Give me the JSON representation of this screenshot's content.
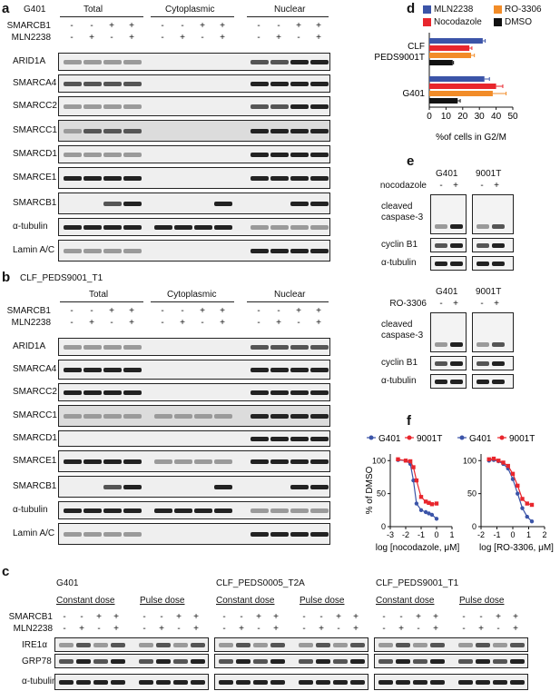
{
  "colors": {
    "mln2238": "#3b54a8",
    "nocodazole": "#e8262d",
    "ro3306": "#f28c28",
    "dmso": "#111111",
    "g401": "#3b54a8",
    "pt9001": "#e8262d"
  },
  "panel_a": {
    "letter": "a",
    "cell_line": "G401",
    "groups": [
      "Total",
      "Cytoplasmic",
      "Nuclear"
    ],
    "row_labels": [
      "SMARCB1",
      "MLN2238"
    ],
    "smarcb1_signs": [
      "-",
      "-",
      "+",
      "+"
    ],
    "mln_signs": [
      "-",
      "+",
      "-",
      "+"
    ],
    "proteins": [
      "ARID1A",
      "SMARCA4",
      "SMARCC2",
      "SMARCC1",
      "SMARCD1",
      "SMARCE1",
      "SMARCB1",
      "α-tubulin",
      "Lamin A/C"
    ]
  },
  "panel_b": {
    "letter": "b",
    "cell_line": "CLF_PEDS9001_T1",
    "groups": [
      "Total",
      "Cytoplasmic",
      "Nuclear"
    ],
    "row_labels": [
      "SMARCB1",
      "MLN2238"
    ],
    "smarcb1_signs": [
      "-",
      "-",
      "+",
      "+"
    ],
    "mln_signs": [
      "-",
      "+",
      "-",
      "+"
    ],
    "proteins": [
      "ARID1A",
      "SMARCA4",
      "SMARCC2",
      "SMARCC1",
      "SMARCD1",
      "SMARCE1",
      "SMARCB1",
      "α-tubulin",
      "Lamin A/C"
    ]
  },
  "panel_c": {
    "letter": "c",
    "cell_lines": [
      "G401",
      "CLF_PEDS0005_T2A",
      "CLF_PEDS9001_T1"
    ],
    "doses": [
      "Constant dose",
      "Pulse dose"
    ],
    "row_labels": [
      "SMARCB1",
      "MLN2238"
    ],
    "proteins": [
      "IRE1α",
      "GRP78",
      "α-tubulin"
    ]
  },
  "panel_d": {
    "letter": "d",
    "legend": [
      "MLN2238",
      "RO-3306",
      "Nocodazole",
      "DMSO"
    ],
    "xlabel": "%of cells in G2/M",
    "xticks": [
      "0",
      "10",
      "20",
      "30",
      "40",
      "50"
    ],
    "chart_data": {
      "type": "bar",
      "orientation": "horizontal",
      "categories": [
        "CLF PEDS9001T",
        "G401"
      ],
      "series": [
        {
          "name": "MLN2238",
          "values": [
            32,
            33
          ]
        },
        {
          "name": "Nocodazole",
          "values": [
            24,
            40
          ]
        },
        {
          "name": "RO-3306",
          "values": [
            25,
            38
          ]
        },
        {
          "name": "DMSO",
          "values": [
            14,
            17
          ]
        }
      ],
      "errors": [
        [
          1.5,
          3
        ],
        [
          1.5,
          4
        ],
        [
          2,
          8
        ],
        [
          0.5,
          1.5
        ]
      ],
      "xlabel": "%of cells in G2/M",
      "xlim": [
        0,
        50
      ]
    }
  },
  "panel_e": {
    "letter": "e",
    "cell_lines": [
      "G401",
      "9001T"
    ],
    "top": {
      "treatment": "nocodazole",
      "signs": [
        "-",
        "+",
        "-",
        "+"
      ],
      "proteins": [
        "cleaved caspase-3",
        "cyclin B1",
        "α-tubulin"
      ]
    },
    "bottom": {
      "treatment": "RO-3306",
      "signs": [
        "-",
        "+",
        "-",
        "+"
      ],
      "proteins": [
        "cleaved caspase-3",
        "cyclin B1",
        "α-tubulin"
      ]
    }
  },
  "panel_f": {
    "letter": "f",
    "ylabel": "% of DMSO",
    "legend": [
      "G401",
      "9001T",
      "G401",
      "9001T"
    ],
    "chart_data": [
      {
        "type": "line",
        "xlabel": "log [nocodazole, μM]",
        "ylabel": "% of DMSO",
        "xlim": [
          -3,
          1
        ],
        "ylim": [
          0,
          110
        ],
        "xticks": [
          -3,
          -2,
          -1,
          0,
          1
        ],
        "yticks": [
          0,
          50,
          100
        ],
        "series": [
          {
            "name": "G401",
            "x": [
              -2.5,
              -2,
              -1.7,
              -1.5,
              -1.3,
              -1,
              -0.7,
              -0.5,
              -0.3,
              0
            ],
            "y": [
              101,
              100,
              95,
              70,
              35,
              25,
              22,
              20,
              18,
              12
            ]
          },
          {
            "name": "9001T",
            "x": [
              -2.5,
              -2,
              -1.7,
              -1.5,
              -1.3,
              -1,
              -0.7,
              -0.5,
              -0.3,
              0
            ],
            "y": [
              102,
              100,
              99,
              90,
              70,
              45,
              38,
              36,
              34,
              35
            ]
          }
        ]
      },
      {
        "type": "line",
        "xlabel": "log [RO-3306, μM]",
        "ylabel": "% of DMSO",
        "xlim": [
          -2,
          2
        ],
        "ylim": [
          0,
          110
        ],
        "xticks": [
          -2,
          -1,
          0,
          1,
          2
        ],
        "yticks": [
          0,
          50,
          100
        ],
        "series": [
          {
            "name": "G401",
            "x": [
              -1.5,
              -1.2,
              -0.9,
              -0.6,
              -0.3,
              0,
              0.3,
              0.6,
              0.9,
              1.2
            ],
            "y": [
              100,
              101,
              99,
              95,
              88,
              72,
              50,
              28,
              15,
              8
            ]
          },
          {
            "name": "9001T",
            "x": [
              -1.5,
              -1.2,
              -0.9,
              -0.6,
              -0.3,
              0,
              0.3,
              0.6,
              0.9,
              1.2
            ],
            "y": [
              102,
              103,
              100,
              97,
              92,
              80,
              62,
              42,
              35,
              33
            ]
          }
        ]
      }
    ]
  }
}
